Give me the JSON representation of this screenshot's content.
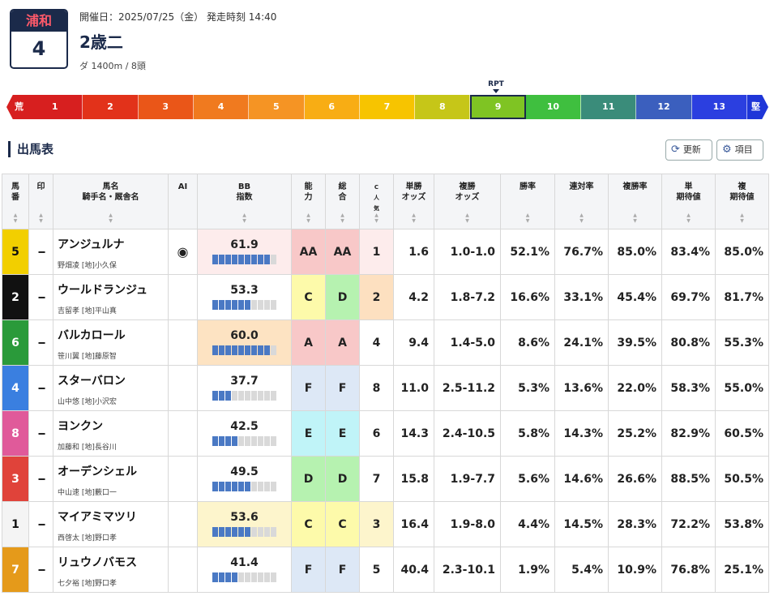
{
  "race": {
    "venue": "浦和",
    "number": "4",
    "date_line": "開催日：2025/07/25（金） 発走時刻 14:40",
    "name": "2歳二",
    "conditions": "ダ 1400m / 8頭"
  },
  "scale": {
    "left_label": "荒",
    "right_label": "堅",
    "rpt_label": "RPT",
    "selected": 9,
    "segments": [
      {
        "label": "1",
        "color": "#d71f1f"
      },
      {
        "label": "2",
        "color": "#e2321a"
      },
      {
        "label": "3",
        "color": "#ea5618"
      },
      {
        "label": "4",
        "color": "#f07a1f"
      },
      {
        "label": "5",
        "color": "#f59424"
      },
      {
        "label": "6",
        "color": "#f8ad14"
      },
      {
        "label": "7",
        "color": "#f7c400"
      },
      {
        "label": "8",
        "color": "#c6c618"
      },
      {
        "label": "9",
        "color": "#7fc423"
      },
      {
        "label": "10",
        "color": "#3fbf3f"
      },
      {
        "label": "11",
        "color": "#3a8c7a"
      },
      {
        "label": "12",
        "color": "#3b5fbe"
      },
      {
        "label": "13",
        "color": "#2b3fe0"
      }
    ],
    "left_color": "#d71f1f",
    "right_color": "#1f36d8"
  },
  "section": {
    "title": "出馬表",
    "refresh_label": "更新",
    "items_label": "項目"
  },
  "columns": {
    "umaban": "馬\n番",
    "mark": "印",
    "horse": "馬名\n騎手名・厩舎名",
    "ai": "AI",
    "bb": "BB\n指数",
    "ability": "能\n力",
    "overall": "総\n合",
    "cpop": "C\n人\n気",
    "win_odds": "単勝\nオッズ",
    "place_odds": "複勝\nオッズ",
    "win_rate": "勝率",
    "quinella_rate": "連対率",
    "place_rate": "複勝率",
    "win_ev": "単\n期待値",
    "place_ev": "複\n期待値"
  },
  "rows": [
    {
      "num": "5",
      "num_bg": "#f2cf00",
      "num_fg": "#111",
      "mark": "--",
      "horse": "アンジュルナ",
      "jockey": "野畑凌 [地]小久保",
      "ai": "◉",
      "bb": "61.9",
      "bb_level": 9,
      "bb_bg": "#fdecec",
      "ability": "AA",
      "ability_bg": "#f8c8c8",
      "overall": "AA",
      "overall_bg": "#f8c8c8",
      "cpop": "1",
      "cpop_bg": "#fdecec",
      "win_odds": "1.6",
      "place_odds": "1.0-1.0",
      "win_rate": "52.1%",
      "quinella_rate": "76.7%",
      "place_rate": "85.0%",
      "win_ev": "83.4%",
      "place_ev": "85.0%"
    },
    {
      "num": "2",
      "num_bg": "#111111",
      "num_fg": "#fff",
      "mark": "--",
      "horse": "ウールドランジュ",
      "jockey": "吉留孝 [地]平山真",
      "ai": "",
      "bb": "53.3",
      "bb_level": 6,
      "bb_bg": "#ffffff",
      "ability": "C",
      "ability_bg": "#fdfaaa",
      "overall": "D",
      "overall_bg": "#b6f2b0",
      "cpop": "2",
      "cpop_bg": "#fde0c0",
      "win_odds": "4.2",
      "place_odds": "1.8-7.2",
      "win_rate": "16.6%",
      "quinella_rate": "33.1%",
      "place_rate": "45.4%",
      "win_ev": "69.7%",
      "place_ev": "81.7%"
    },
    {
      "num": "6",
      "num_bg": "#2a9a3a",
      "num_fg": "#fff",
      "mark": "--",
      "horse": "バルカロール",
      "jockey": "笹川翼 [地]藤原智",
      "ai": "",
      "bb": "60.0",
      "bb_level": 9,
      "bb_bg": "#fde3c2",
      "ability": "A",
      "ability_bg": "#f8c8c8",
      "overall": "A",
      "overall_bg": "#f8c8c8",
      "cpop": "4",
      "cpop_bg": "#ffffff",
      "win_odds": "9.4",
      "place_odds": "1.4-5.0",
      "win_rate": "8.6%",
      "quinella_rate": "24.1%",
      "place_rate": "39.5%",
      "win_ev": "80.8%",
      "place_ev": "55.3%"
    },
    {
      "num": "4",
      "num_bg": "#3a7fe0",
      "num_fg": "#fff",
      "mark": "--",
      "horse": "スターバロン",
      "jockey": "山中悠 [地]小沢宏",
      "ai": "",
      "bb": "37.7",
      "bb_level": 3,
      "bb_bg": "#ffffff",
      "ability": "F",
      "ability_bg": "#dde8f6",
      "overall": "F",
      "overall_bg": "#dde8f6",
      "cpop": "8",
      "cpop_bg": "#ffffff",
      "win_odds": "11.0",
      "place_odds": "2.5-11.2",
      "win_rate": "5.3%",
      "quinella_rate": "13.6%",
      "place_rate": "22.0%",
      "win_ev": "58.3%",
      "place_ev": "55.0%"
    },
    {
      "num": "8",
      "num_bg": "#e05a9a",
      "num_fg": "#fff",
      "mark": "--",
      "horse": "ヨンクン",
      "jockey": "加藤和 [地]長谷川",
      "ai": "",
      "bb": "42.5",
      "bb_level": 4,
      "bb_bg": "#ffffff",
      "ability": "E",
      "ability_bg": "#c0f4f8",
      "overall": "E",
      "overall_bg": "#c0f4f8",
      "cpop": "6",
      "cpop_bg": "#ffffff",
      "win_odds": "14.3",
      "place_odds": "2.4-10.5",
      "win_rate": "5.8%",
      "quinella_rate": "14.3%",
      "place_rate": "25.2%",
      "win_ev": "82.9%",
      "place_ev": "60.5%"
    },
    {
      "num": "3",
      "num_bg": "#e0433a",
      "num_fg": "#fff",
      "mark": "--",
      "horse": "オーデンシェル",
      "jockey": "中山速 [地]藪口一",
      "ai": "",
      "bb": "49.5",
      "bb_level": 6,
      "bb_bg": "#ffffff",
      "ability": "D",
      "ability_bg": "#b6f2b0",
      "overall": "D",
      "overall_bg": "#b6f2b0",
      "cpop": "7",
      "cpop_bg": "#ffffff",
      "win_odds": "15.8",
      "place_odds": "1.9-7.7",
      "win_rate": "5.6%",
      "quinella_rate": "14.6%",
      "place_rate": "26.6%",
      "win_ev": "88.5%",
      "place_ev": "50.5%"
    },
    {
      "num": "1",
      "num_bg": "#f4f4f4",
      "num_fg": "#111",
      "mark": "--",
      "horse": "マイアミマツリ",
      "jockey": "西啓太 [地]野口孝",
      "ai": "",
      "bb": "53.6",
      "bb_level": 6,
      "bb_bg": "#fdf5cc",
      "ability": "C",
      "ability_bg": "#fdfaaa",
      "overall": "C",
      "overall_bg": "#fdfaaa",
      "cpop": "3",
      "cpop_bg": "#fdf5cc",
      "win_odds": "16.4",
      "place_odds": "1.9-8.0",
      "win_rate": "4.4%",
      "quinella_rate": "14.5%",
      "place_rate": "28.3%",
      "win_ev": "72.2%",
      "place_ev": "53.8%"
    },
    {
      "num": "7",
      "num_bg": "#e59a1a",
      "num_fg": "#fff",
      "mark": "--",
      "horse": "リュウノバモス",
      "jockey": "七夕裕 [地]野口孝",
      "ai": "",
      "bb": "41.4",
      "bb_level": 4,
      "bb_bg": "#ffffff",
      "ability": "F",
      "ability_bg": "#dde8f6",
      "overall": "F",
      "overall_bg": "#dde8f6",
      "cpop": "5",
      "cpop_bg": "#ffffff",
      "win_odds": "40.4",
      "place_odds": "2.3-10.1",
      "win_rate": "1.9%",
      "quinella_rate": "5.4%",
      "place_rate": "10.9%",
      "win_ev": "76.8%",
      "place_ev": "25.1%"
    }
  ]
}
